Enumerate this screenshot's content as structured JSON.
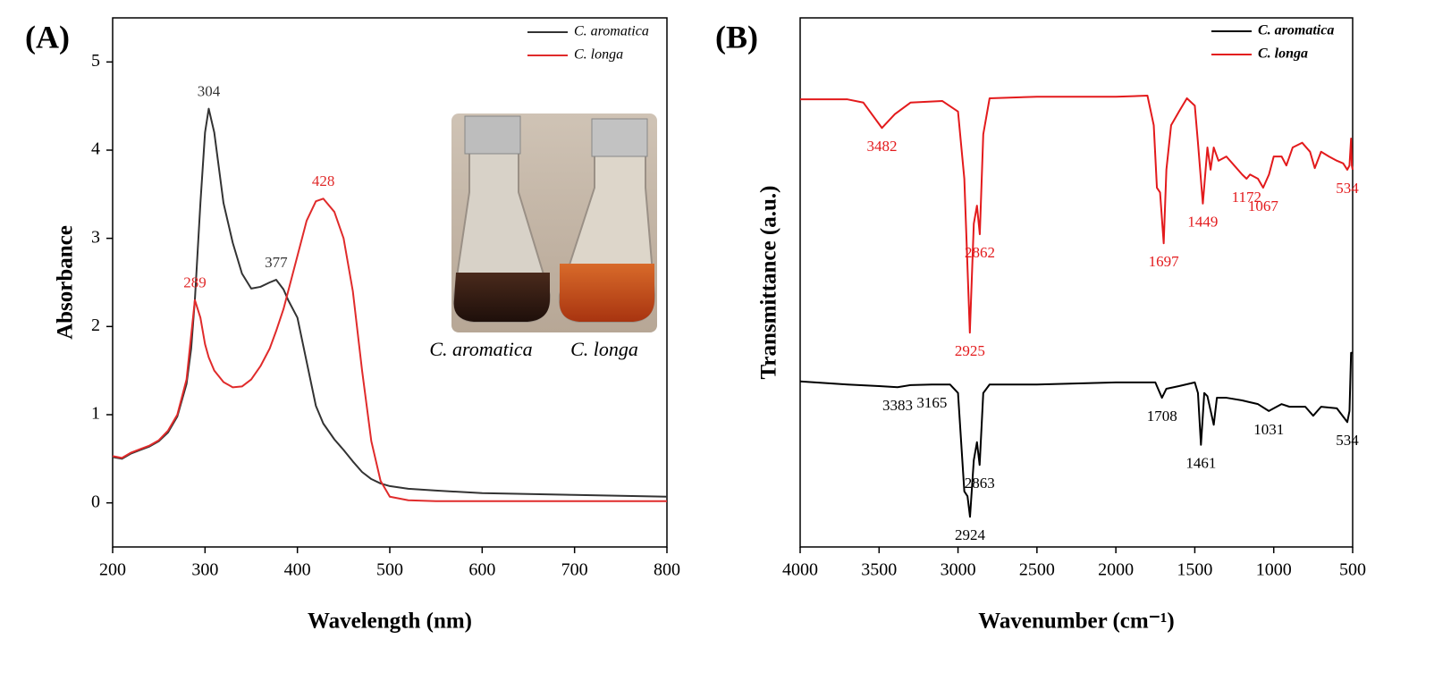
{
  "chart_data": [
    {
      "type": "line",
      "panel": "(A)",
      "x_label": "Wavelength (nm)",
      "y_label": "Absorbance",
      "xlim": [
        200,
        800
      ],
      "xticks": [
        200,
        300,
        400,
        500,
        600,
        700,
        800
      ],
      "ylim": [
        -0.5,
        5.5
      ],
      "yticks": [
        0,
        1,
        2,
        3,
        4,
        5
      ],
      "legend": "upper right",
      "annotations": [
        "C. aromatica",
        "C. longa"
      ],
      "series": [
        {
          "name": "C. aromatica",
          "color": "#333333",
          "peaks": [
            304,
            377
          ],
          "x": [
            200,
            210,
            220,
            230,
            240,
            250,
            260,
            270,
            280,
            285,
            289,
            295,
            300,
            304,
            310,
            320,
            330,
            340,
            350,
            360,
            370,
            377,
            385,
            390,
            400,
            410,
            420,
            428,
            440,
            450,
            460,
            470,
            480,
            490,
            500,
            520,
            550,
            600,
            650,
            700,
            750,
            800
          ],
          "values": [
            0.52,
            0.5,
            0.56,
            0.6,
            0.64,
            0.7,
            0.8,
            0.98,
            1.35,
            1.75,
            2.3,
            3.4,
            4.2,
            4.47,
            4.2,
            3.4,
            2.95,
            2.6,
            2.43,
            2.45,
            2.5,
            2.53,
            2.42,
            2.3,
            2.1,
            1.6,
            1.1,
            0.9,
            0.72,
            0.6,
            0.47,
            0.35,
            0.27,
            0.22,
            0.19,
            0.16,
            0.14,
            0.11,
            0.1,
            0.09,
            0.08,
            0.07
          ]
        },
        {
          "name": "C. longa",
          "color": "#e02b2b",
          "peaks": [
            289,
            428
          ],
          "x": [
            200,
            210,
            220,
            230,
            240,
            250,
            260,
            270,
            280,
            285,
            289,
            295,
            300,
            304,
            310,
            320,
            330,
            340,
            350,
            360,
            370,
            377,
            385,
            390,
            400,
            410,
            420,
            428,
            440,
            450,
            460,
            470,
            480,
            490,
            500,
            520,
            550,
            600,
            650,
            700,
            750,
            800
          ],
          "values": [
            0.53,
            0.51,
            0.57,
            0.61,
            0.65,
            0.71,
            0.82,
            1.0,
            1.4,
            1.9,
            2.3,
            2.1,
            1.8,
            1.65,
            1.5,
            1.37,
            1.31,
            1.32,
            1.4,
            1.55,
            1.75,
            1.95,
            2.2,
            2.4,
            2.8,
            3.2,
            3.42,
            3.45,
            3.3,
            3.0,
            2.4,
            1.5,
            0.7,
            0.25,
            0.07,
            0.03,
            0.02,
            0.02,
            0.02,
            0.02,
            0.02,
            0.02
          ]
        }
      ]
    },
    {
      "type": "line",
      "panel": "(B)",
      "x_label": "Wavenumber (cm⁻¹)",
      "y_label": "Transmittance (a.u.)",
      "xlim": [
        4000,
        500
      ],
      "xticks": [
        4000,
        3500,
        3000,
        2500,
        2000,
        1500,
        1000,
        500
      ],
      "ylim": [
        0,
        100
      ],
      "legend": "upper right",
      "series": [
        {
          "name": "C. aromatica",
          "color": "#000000",
          "peaks": [
            3383,
            3165,
            2924,
            2863,
            1708,
            1461,
            1031,
            534
          ],
          "x": [
            4000,
            3700,
            3500,
            3383,
            3300,
            3165,
            3050,
            3000,
            2960,
            2940,
            2924,
            2900,
            2880,
            2863,
            2840,
            2800,
            2500,
            2000,
            1750,
            1708,
            1680,
            1600,
            1500,
            1480,
            1461,
            1440,
            1420,
            1380,
            1360,
            1300,
            1200,
            1100,
            1031,
            1000,
            950,
            900,
            800,
            750,
            700,
            600,
            534,
            520,
            510,
            500
          ],
          "values": [
            31.3,
            30.7,
            30.4,
            30.2,
            30.6,
            30.7,
            30.7,
            29.1,
            10.5,
            9.6,
            5.7,
            16.4,
            19.8,
            15.5,
            29.1,
            30.7,
            30.7,
            31.1,
            31.1,
            28.2,
            29.9,
            30.4,
            31.1,
            29.1,
            19.3,
            29.1,
            28.5,
            23.1,
            28.2,
            28.2,
            27.7,
            27,
            25.7,
            26.2,
            27,
            26.5,
            26.5,
            24.8,
            26.5,
            26.2,
            23.6,
            25.7,
            36.7,
            36.7
          ]
        },
        {
          "name": "C. longa",
          "color": "#e31a1c",
          "peaks": [
            3482,
            2925,
            2862,
            1697,
            1449,
            1172,
            1067,
            534
          ],
          "x": [
            4000,
            3700,
            3600,
            3482,
            3400,
            3300,
            3100,
            3000,
            2960,
            2925,
            2900,
            2880,
            2862,
            2840,
            2800,
            2500,
            2000,
            1800,
            1760,
            1740,
            1720,
            1697,
            1680,
            1650,
            1600,
            1550,
            1500,
            1480,
            1449,
            1420,
            1400,
            1380,
            1350,
            1300,
            1250,
            1200,
            1172,
            1150,
            1100,
            1067,
            1030,
            1000,
            950,
            920,
            880,
            820,
            770,
            740,
            700,
            650,
            600,
            560,
            534,
            520,
            510,
            505,
            500
          ],
          "values": [
            84.6,
            84.6,
            84,
            79.2,
            81.8,
            84,
            84.3,
            82.3,
            69.6,
            40.5,
            61.1,
            64.5,
            59.1,
            78,
            84.8,
            85.1,
            85.1,
            85.3,
            79.7,
            67.9,
            67,
            57.4,
            71.3,
            79.7,
            82.3,
            84.8,
            83.4,
            76.4,
            64.9,
            75.5,
            71.3,
            75.5,
            73,
            73.8,
            72.1,
            70.4,
            69.6,
            70.4,
            69.6,
            67.9,
            70.4,
            73.8,
            73.8,
            72.1,
            75.5,
            76.4,
            74.7,
            71.6,
            74.7,
            73.8,
            73,
            72.5,
            71.3,
            72.1,
            77.2,
            72.1,
            71.3
          ]
        }
      ]
    }
  ]
}
